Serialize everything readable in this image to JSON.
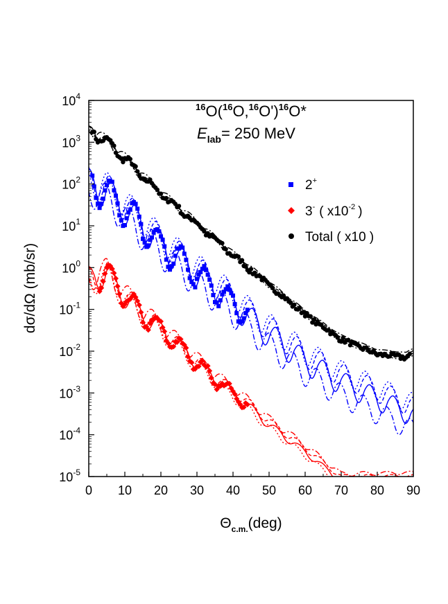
{
  "title": {
    "reaction": {
      "mass1": "16",
      "el1": "O(",
      "mass2": "16",
      "el2": "O,",
      "mass3": "16",
      "el3": "O')",
      "mass4": "16",
      "el4": "O*"
    },
    "energy": {
      "sym": "E",
      "sub": "lab",
      "value": "= 250 MeV"
    }
  },
  "chart_data": {
    "type": "scatter",
    "yscale": "log",
    "xlabel": {
      "main": "Θ",
      "sub": "c.m.",
      "unit": "(deg)"
    },
    "ylabel": "dσ/dΩ (mb/sr)",
    "xlim": [
      0,
      90
    ],
    "ylim_exponents": [
      -5,
      4
    ],
    "x_ticks": [
      0,
      10,
      20,
      30,
      40,
      50,
      60,
      70,
      80,
      90
    ],
    "y_tick_labels": [
      {
        "exp": -5,
        "base": "10",
        "power": "-5"
      },
      {
        "exp": -4,
        "base": "10",
        "power": "-4"
      },
      {
        "exp": -3,
        "base": "10",
        "power": "-3"
      },
      {
        "exp": -2,
        "base": "10",
        "power": "-2"
      },
      {
        "exp": -1,
        "base": "10",
        "power": "-1"
      },
      {
        "exp": 0,
        "base": "10",
        "power": "0"
      },
      {
        "exp": 1,
        "base": "10",
        "power": "1"
      },
      {
        "exp": 2,
        "base": "10",
        "power": "2"
      },
      {
        "exp": 3,
        "base": "10",
        "power": "3"
      },
      {
        "exp": 4,
        "base": "10",
        "power": "4"
      }
    ],
    "legend": {
      "position": "top-right",
      "items": [
        {
          "label": "2",
          "sup": "+",
          "suffix": "",
          "color": "#0000ff",
          "marker": "square"
        },
        {
          "label": "3",
          "sup": "-",
          "suffix": "( x10",
          "suffix_sup": "-2",
          "suffix_end": ")",
          "color": "#ff0000",
          "marker": "diamond"
        },
        {
          "label": "Total ( x10 )",
          "sup": "",
          "suffix": "",
          "color": "#000000",
          "marker": "circle"
        }
      ]
    },
    "series": [
      {
        "name": "Total (x10)",
        "color": "#000000",
        "marker": "circle",
        "trend": {
          "x": [
            1,
            5,
            10,
            15,
            20,
            30,
            40,
            50,
            60,
            70,
            80,
            88,
            90
          ],
          "log10y": [
            3.28,
            3.02,
            2.62,
            2.18,
            1.78,
            1.05,
            0.3,
            -0.42,
            -1.12,
            -1.72,
            -2.07,
            -2.15,
            -2.05
          ]
        },
        "osc": {
          "amp": 0.12,
          "period": 6.0,
          "decay": 30
        },
        "points_x_range": [
          1,
          89,
          0.5
        ],
        "model_offsets": [
          0.0,
          0.06,
          -0.05,
          0.12
        ]
      },
      {
        "name": "2+",
        "color": "#0000ff",
        "marker": "square",
        "trend": {
          "x": [
            1,
            5,
            10,
            15,
            20,
            30,
            40,
            45,
            50,
            60,
            70,
            80,
            85,
            90
          ],
          "log10y": [
            2.05,
            1.85,
            1.45,
            1.02,
            0.6,
            -0.1,
            -0.8,
            -1.2,
            -1.55,
            -2.2,
            -2.7,
            -3.1,
            -3.3,
            -3.5
          ]
        },
        "osc": {
          "amp": 0.35,
          "period": 6.5,
          "decay": 200
        },
        "points_x_range": [
          1,
          44,
          0.5
        ],
        "model_offsets": [
          0.0,
          0.22,
          0.3,
          -0.35
        ]
      },
      {
        "name": "3- (x10^-2)",
        "color": "#ff0000",
        "marker": "diamond",
        "trend": {
          "x": [
            0,
            5,
            10,
            15,
            20,
            25,
            30,
            35,
            40,
            45,
            50,
            60,
            70
          ],
          "log10y": [
            -0.25,
            -0.1,
            -0.65,
            -1.1,
            -1.45,
            -1.85,
            -2.25,
            -2.65,
            -3.0,
            -3.35,
            -3.75,
            -4.4,
            -5.1
          ]
        },
        "osc": {
          "amp": 0.3,
          "period": 6.5,
          "decay": 40
        },
        "points_x_range": [
          3,
          44,
          0.5
        ],
        "model_offsets": [
          0.0,
          0.12,
          -0.1,
          0.2
        ]
      }
    ]
  }
}
